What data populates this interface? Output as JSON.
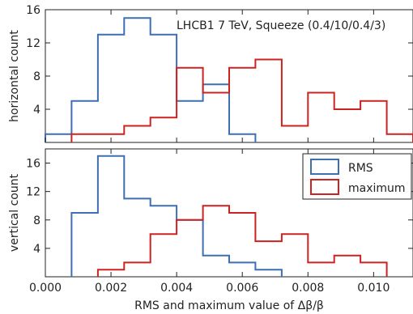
{
  "chart_data": [
    {
      "type": "histogram",
      "panel": "top",
      "annotation": "LHCB1 7 TeV, Squeeze (0.4/10/0.4/3)",
      "ylabel": "horizontal count",
      "xlabel": "",
      "xlim": [
        0.0,
        0.0112
      ],
      "ylim": [
        0,
        16
      ],
      "yticks": [
        4,
        8,
        12,
        16
      ],
      "xticks": [],
      "grid": false,
      "series": [
        {
          "name": "RMS",
          "color": "#3e6fb0",
          "bin_edges": [
            0.0,
            0.0008,
            0.0016,
            0.0024,
            0.0032,
            0.004,
            0.0048,
            0.0056,
            0.0064
          ],
          "counts": [
            1,
            5,
            13,
            15,
            13,
            5,
            7,
            1
          ]
        },
        {
          "name": "maximum",
          "color": "#cc2222",
          "bin_edges": [
            0.0008,
            0.0016,
            0.0024,
            0.0032,
            0.004,
            0.0048,
            0.0056,
            0.0064,
            0.0072,
            0.008,
            0.0088,
            0.0096,
            0.0104,
            0.0112
          ],
          "counts": [
            1,
            1,
            2,
            3,
            9,
            6,
            9,
            10,
            2,
            6,
            4,
            5,
            1
          ]
        }
      ]
    },
    {
      "type": "histogram",
      "panel": "bottom",
      "ylabel": "vertical count",
      "xlabel": "RMS and maximum value of Δβ/β",
      "xlim": [
        0.0,
        0.0112
      ],
      "ylim": [
        0,
        18
      ],
      "yticks": [
        4,
        8,
        12,
        16
      ],
      "xticks": [
        "0.000",
        "0.002",
        "0.004",
        "0.006",
        "0.008",
        "0.010"
      ],
      "xtick_values": [
        0.0,
        0.002,
        0.004,
        0.006,
        0.008,
        0.01
      ],
      "grid": false,
      "legend": "top-right",
      "series": [
        {
          "name": "RMS",
          "color": "#3e6fb0",
          "bin_edges": [
            0.0008,
            0.0016,
            0.0024,
            0.0032,
            0.004,
            0.0048,
            0.0056,
            0.0064,
            0.0072
          ],
          "counts": [
            9,
            17,
            11,
            10,
            8,
            3,
            2,
            1
          ]
        },
        {
          "name": "maximum",
          "color": "#cc2222",
          "bin_edges": [
            0.0016,
            0.0024,
            0.0032,
            0.004,
            0.0048,
            0.0056,
            0.0064,
            0.0072,
            0.008,
            0.0088,
            0.0096,
            0.0104
          ],
          "counts": [
            1,
            2,
            6,
            8,
            10,
            9,
            5,
            6,
            2,
            3,
            2
          ]
        }
      ]
    }
  ]
}
